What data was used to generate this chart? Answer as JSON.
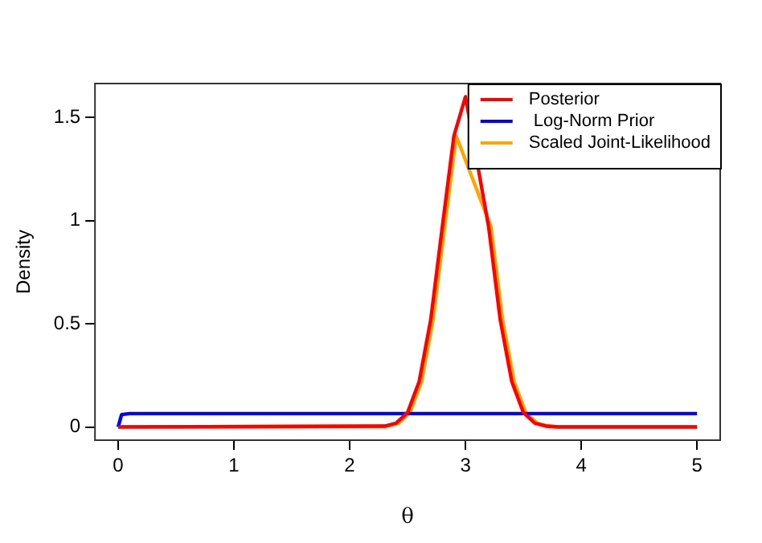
{
  "chart_data": {
    "type": "line",
    "xlabel": "θ",
    "ylabel": "Density",
    "xlim": [
      -0.2,
      5.2
    ],
    "ylim": [
      -0.064,
      1.664
    ],
    "xticks": [
      0,
      1,
      2,
      3,
      4,
      5
    ],
    "yticks": [
      0,
      0.5,
      1,
      1.5
    ],
    "grid": false,
    "legend": "top right",
    "marker": "none",
    "line_style": "solid",
    "series": [
      {
        "name": "Posterior",
        "color": "#ff0000",
        "x": [
          0,
          2.3,
          2.4,
          2.5,
          2.6,
          2.7,
          2.8,
          2.9,
          3.0,
          3.1,
          3.2,
          3.3,
          3.4,
          3.5,
          3.6,
          3.7,
          3.8,
          5
        ],
        "values": [
          0,
          0.004,
          0.018,
          0.07,
          0.22,
          0.52,
          0.97,
          1.41,
          1.6,
          null,
          0.97,
          0.52,
          0.22,
          0.07,
          0.018,
          0.004,
          0,
          0
        ]
      },
      {
        "name": " Log-Norm Prior",
        "color": "#0000ff",
        "x": [
          0,
          0.03,
          0.1,
          5
        ],
        "values": [
          0,
          0.06,
          0.065,
          0.065
        ]
      },
      {
        "name": "Scaled Joint-Likelihood",
        "color": "#ffa500",
        "x": [
          0,
          2.32,
          2.42,
          2.52,
          2.62,
          2.72,
          2.82,
          2.92,
          3.02,
          3.12,
          3.22,
          3.32,
          3.42,
          3.52,
          3.62,
          3.72,
          3.82,
          5
        ],
        "values": [
          0,
          0.004,
          0.018,
          0.07,
          0.22,
          0.52,
          0.97,
          1.41,
          null,
          null,
          0.97,
          0.52,
          0.22,
          0.07,
          0.018,
          0.004,
          0,
          0
        ]
      }
    ]
  }
}
